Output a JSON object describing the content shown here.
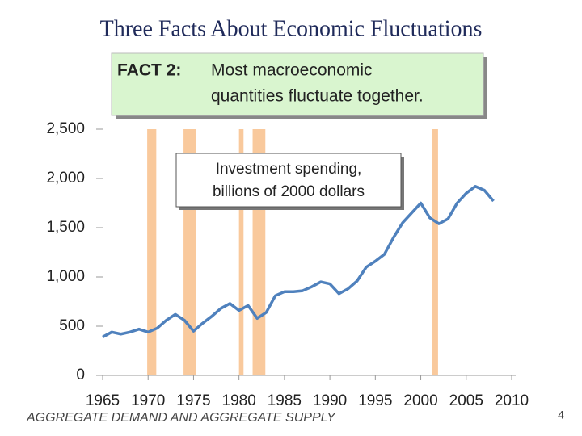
{
  "title": "Three Facts About Economic Fluctuations",
  "fact": {
    "label": "FACT 2:",
    "lines": [
      "Most macroeconomic",
      "quantities fluctuate together."
    ]
  },
  "chart_data": {
    "type": "line",
    "annotation": [
      "Investment spending,",
      "billions of 2000 dollars"
    ],
    "x": [
      1965,
      1966,
      1967,
      1968,
      1969,
      1970,
      1971,
      1972,
      1973,
      1974,
      1975,
      1976,
      1977,
      1978,
      1979,
      1980,
      1981,
      1982,
      1983,
      1984,
      1985,
      1986,
      1987,
      1988,
      1989,
      1990,
      1991,
      1992,
      1993,
      1994,
      1995,
      1996,
      1997,
      1998,
      1999,
      2000,
      2001,
      2002,
      2003,
      2004,
      2005,
      2006,
      2007,
      2008
    ],
    "series": [
      {
        "name": "Investment spending",
        "color": "#4f81bd",
        "values": [
          390,
          440,
          420,
          440,
          470,
          440,
          480,
          560,
          620,
          560,
          450,
          530,
          600,
          680,
          730,
          660,
          710,
          580,
          640,
          810,
          850,
          850,
          860,
          900,
          950,
          930,
          830,
          880,
          960,
          1100,
          1160,
          1230,
          1400,
          1550,
          1650,
          1750,
          1600,
          1540,
          1590,
          1750,
          1850,
          1920,
          1880,
          1770
        ]
      }
    ],
    "recessions": [
      [
        1969.9,
        1970.9
      ],
      [
        1973.9,
        1975.3
      ],
      [
        1980.0,
        1980.5
      ],
      [
        1981.5,
        1982.9
      ],
      [
        2001.2,
        2001.9
      ]
    ],
    "recession_color": "#f9c99c",
    "xlim": [
      1965,
      2010
    ],
    "xticks": [
      1965,
      1970,
      1975,
      1980,
      1985,
      1990,
      1995,
      2000,
      2005,
      2010
    ],
    "ylim": [
      0,
      2500
    ],
    "yticks": [
      0,
      500,
      {
        "value": 1000,
        "label": "1,000"
      },
      {
        "value": 1500,
        "label": "1,500"
      },
      {
        "value": 2000,
        "label": "2,000"
      },
      {
        "value": 2500,
        "label": "2,500"
      }
    ]
  },
  "footer": {
    "text": "AGGREGATE DEMAND AND AGGREGATE SUPPLY",
    "page_number": "4"
  }
}
